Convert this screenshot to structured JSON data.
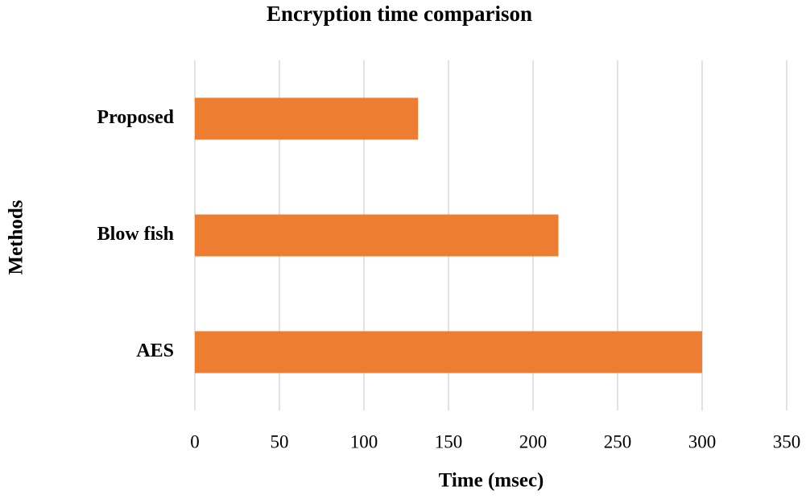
{
  "chart_data": {
    "type": "bar",
    "orientation": "horizontal",
    "title": "Encryption time comparison",
    "x_label": "Time (msec)",
    "y_label": "Methods",
    "categories": [
      "Proposed",
      "Blow fish",
      "AES"
    ],
    "values": [
      132,
      215,
      300
    ],
    "color": "#ed7d31",
    "xlim": [
      0,
      350
    ],
    "xticks": [
      0,
      50,
      100,
      150,
      200,
      250,
      300,
      350
    ],
    "grid": true
  }
}
